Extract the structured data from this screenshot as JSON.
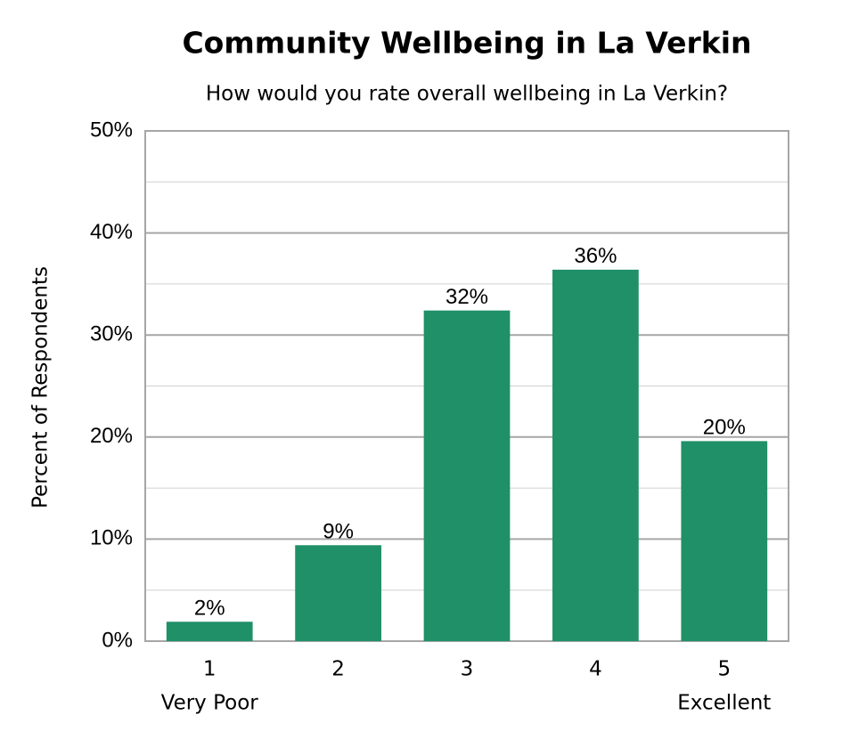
{
  "chart_data": {
    "type": "bar",
    "title": "Community Wellbeing in La Verkin",
    "subtitle": "How would you rate overall wellbeing in La Verkin?",
    "y_label": "Percent of Respondents",
    "categories": [
      "1",
      "2",
      "3",
      "4",
      "5"
    ],
    "category_notes": [
      "Very Poor",
      null,
      null,
      null,
      "Excellent"
    ],
    "values": [
      1.9,
      9.4,
      32.4,
      36.4,
      19.6
    ],
    "value_labels": [
      "2%",
      "9%",
      "32%",
      "36%",
      "20%"
    ],
    "color": "#1f9068",
    "ylim": [
      0,
      50
    ],
    "yticks": [
      {
        "value": 0,
        "label": "0%"
      },
      {
        "value": 10,
        "label": "10%"
      },
      {
        "value": 20,
        "label": "20%"
      },
      {
        "value": 30,
        "label": "30%"
      },
      {
        "value": 40,
        "label": "40%"
      },
      {
        "value": 50,
        "label": "50%"
      }
    ],
    "minor_yticks": [
      5,
      15,
      25,
      35,
      45
    ],
    "grid": true
  }
}
